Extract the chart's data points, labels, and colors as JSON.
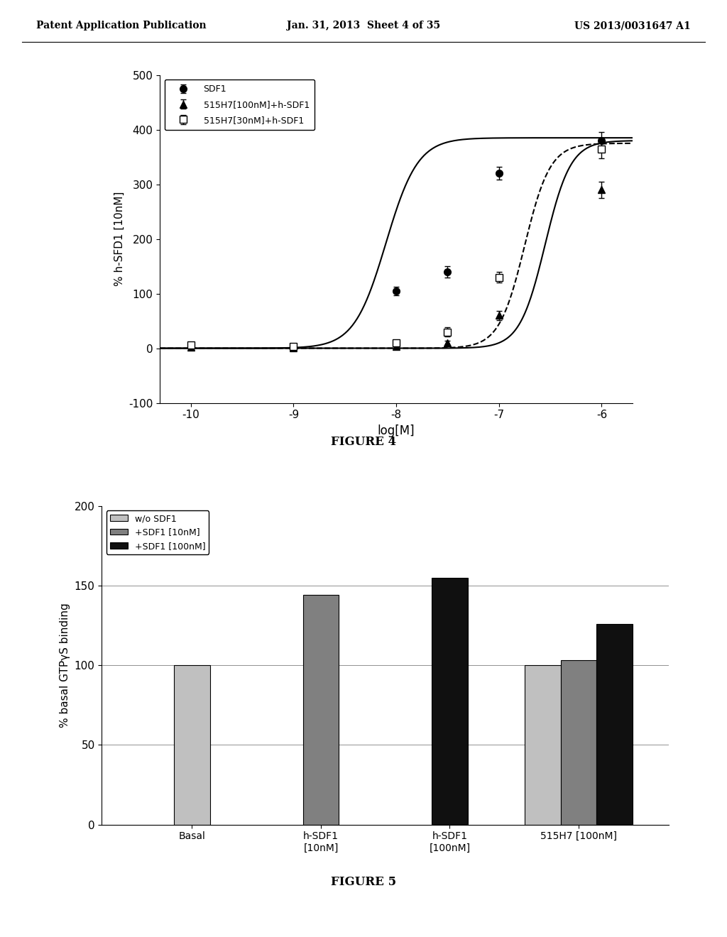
{
  "fig4": {
    "xlabel": "log[M]",
    "ylabel": "% h-SFD1 [10nM]",
    "ylim": [
      -100,
      500
    ],
    "yticks": [
      -100,
      0,
      100,
      200,
      300,
      400,
      500
    ],
    "xlim": [
      -10.3,
      -5.7
    ],
    "xticks": [
      -10,
      -9,
      -8,
      -7,
      -6
    ],
    "xticklabels": [
      "-10",
      "-9",
      "-8",
      "-7",
      "-6"
    ],
    "series": [
      {
        "label": "SDF1",
        "marker": "o",
        "mfc": "black",
        "mec": "black",
        "linestyle": "-",
        "ec50_log": -8.1,
        "hill": 2.8,
        "top": 385,
        "bottom": 0,
        "x_data": [
          -10,
          -9,
          -8,
          -7.5,
          -7.0,
          -6.0
        ],
        "y_data": [
          5,
          2,
          105,
          140,
          320,
          380
        ],
        "yerr": [
          4,
          3,
          8,
          10,
          12,
          15
        ]
      },
      {
        "label": "515H7[100nM]+h-SDF1",
        "marker": "^",
        "mfc": "black",
        "mec": "black",
        "linestyle": "-",
        "ec50_log": -6.55,
        "hill": 3.5,
        "top": 380,
        "bottom": 0,
        "x_data": [
          -10,
          -9,
          -8,
          -7.5,
          -7.0,
          -6.0
        ],
        "y_data": [
          2,
          1,
          4,
          10,
          60,
          290
        ],
        "yerr": [
          2,
          2,
          3,
          4,
          8,
          15
        ]
      },
      {
        "label": "515H7[30nM]+h-SDF1",
        "marker": "s",
        "mfc": "white",
        "mec": "black",
        "linestyle": "--",
        "ec50_log": -6.75,
        "hill": 3.5,
        "top": 375,
        "bottom": 0,
        "x_data": [
          -10,
          -9,
          -8,
          -7.5,
          -7.0,
          -6.0
        ],
        "y_data": [
          6,
          3,
          10,
          30,
          130,
          365
        ],
        "yerr": [
          4,
          3,
          4,
          8,
          10,
          18
        ]
      }
    ]
  },
  "fig4_caption": "FIGURE 4",
  "fig5": {
    "ylabel": "% basal GTPγS binding",
    "ylim": [
      0,
      200
    ],
    "yticks": [
      0,
      50,
      100,
      150,
      200
    ],
    "groups": [
      "Basal",
      "h-SDF1\n[10nM]",
      "h-SDF1\n[100nM]",
      "515H7 [100nM]"
    ],
    "bar_labels": [
      "w/o SDF1",
      "+SDF1 [10nM]",
      "+SDF1 [100nM]"
    ],
    "bar_colors": [
      "#c0c0c0",
      "#808080",
      "#101010"
    ],
    "bar_width": 0.28,
    "group_data": [
      {
        "bars": [
          0
        ],
        "values": [
          100
        ]
      },
      {
        "bars": [
          1
        ],
        "values": [
          144
        ]
      },
      {
        "bars": [
          2
        ],
        "values": [
          155
        ]
      },
      {
        "bars": [
          0,
          1,
          2
        ],
        "values": [
          100,
          103,
          126
        ]
      }
    ]
  },
  "fig5_caption": "FIGURE 5",
  "header": {
    "left": "Patent Application Publication",
    "center": "Jan. 31, 2013  Sheet 4 of 35",
    "right": "US 2013/0031647 A1"
  },
  "background_color": "#ffffff"
}
